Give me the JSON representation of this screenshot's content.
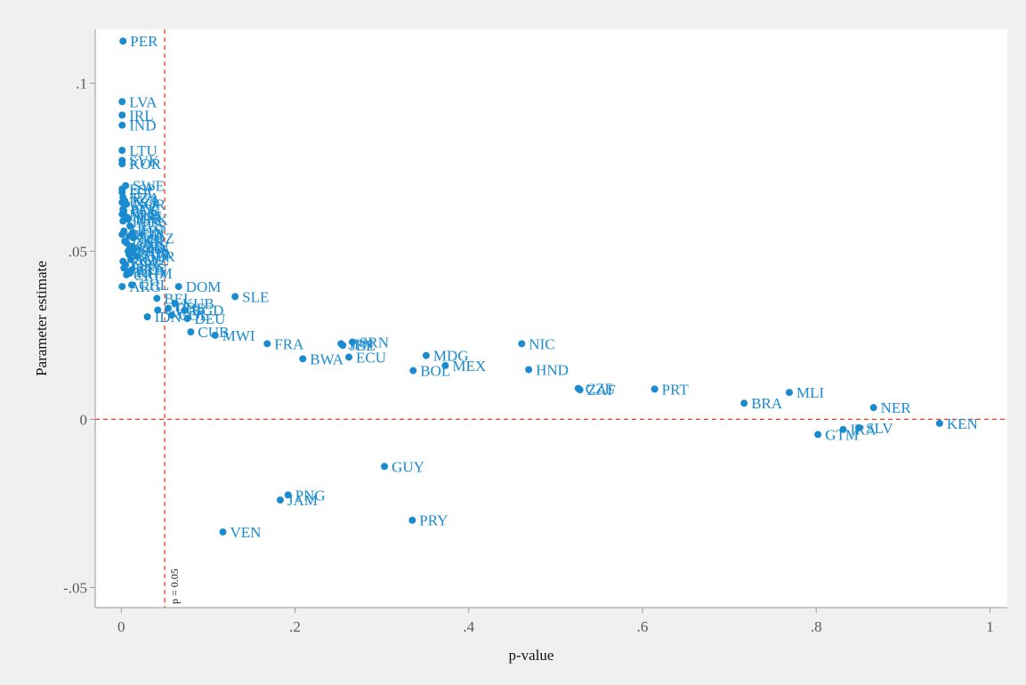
{
  "chart_data": {
    "type": "scatter",
    "xlabel": "p-value",
    "ylabel": "Parameter estimate",
    "xlim": [
      -0.03,
      1.02
    ],
    "ylim": [
      -0.056,
      0.116
    ],
    "xticks": [
      0,
      0.2,
      0.4,
      0.6,
      0.8,
      1
    ],
    "xtick_labels": [
      "0",
      ".2",
      ".4",
      ".6",
      ".8",
      "1"
    ],
    "yticks": [
      -0.05,
      0,
      0.05,
      0.1
    ],
    "ytick_labels": [
      "-.05",
      "0",
      ".05",
      ".1"
    ],
    "grid": false,
    "marker_color": "#1a8bcf",
    "ref_color": "#e8402a",
    "reference_lines": {
      "vertical": {
        "x": 0.05,
        "label": "p = 0.05"
      },
      "horizontal": {
        "y": 0
      }
    },
    "points": [
      {
        "label": "PER",
        "x": 0.002,
        "y": 0.1125
      },
      {
        "label": "LVA",
        "x": 0.001,
        "y": 0.0945
      },
      {
        "label": "IRL",
        "x": 0.001,
        "y": 0.0905
      },
      {
        "label": "IND",
        "x": 0.001,
        "y": 0.0875
      },
      {
        "label": "LTU",
        "x": 0.001,
        "y": 0.08
      },
      {
        "label": "SVK",
        "x": 0.001,
        "y": 0.077
      },
      {
        "label": "KOR",
        "x": 0.001,
        "y": 0.076
      },
      {
        "label": "SWE",
        "x": 0.005,
        "y": 0.0695
      },
      {
        "label": "ESP",
        "x": 0.001,
        "y": 0.0685
      },
      {
        "label": "ITA",
        "x": 0.001,
        "y": 0.0675
      },
      {
        "label": "TZA",
        "x": 0.002,
        "y": 0.066
      },
      {
        "label": "NZL",
        "x": 0.004,
        "y": 0.065
      },
      {
        "label": "USA",
        "x": 0.001,
        "y": 0.0645
      },
      {
        "label": "NOR",
        "x": 0.006,
        "y": 0.064
      },
      {
        "label": "PAK",
        "x": 0.002,
        "y": 0.0625
      },
      {
        "label": "POL",
        "x": 0.003,
        "y": 0.062
      },
      {
        "label": "NLD",
        "x": 0.001,
        "y": 0.061
      },
      {
        "label": "AUS",
        "x": 0.004,
        "y": 0.0605
      },
      {
        "label": "JOR",
        "x": 0.007,
        "y": 0.06
      },
      {
        "label": "DNK",
        "x": 0.008,
        "y": 0.0595
      },
      {
        "label": "TUR",
        "x": 0.002,
        "y": 0.059
      },
      {
        "label": "RUS",
        "x": 0.01,
        "y": 0.0575
      },
      {
        "label": "HUN",
        "x": 0.003,
        "y": 0.056
      },
      {
        "label": "FIN",
        "x": 0.013,
        "y": 0.0555
      },
      {
        "label": "BGR",
        "x": 0.001,
        "y": 0.055
      },
      {
        "label": "CZE",
        "x": 0.009,
        "y": 0.0545
      },
      {
        "label": "MOZ",
        "x": 0.014,
        "y": 0.054
      },
      {
        "label": "UKR",
        "x": 0.004,
        "y": 0.053
      },
      {
        "label": "ZAF",
        "x": 0.006,
        "y": 0.0525
      },
      {
        "label": "URY",
        "x": 0.012,
        "y": 0.0515
      },
      {
        "label": "CHN",
        "x": 0.01,
        "y": 0.051
      },
      {
        "label": "PHL",
        "x": 0.015,
        "y": 0.0505
      },
      {
        "label": "THA",
        "x": 0.008,
        "y": 0.05
      },
      {
        "label": "UGA",
        "x": 0.013,
        "y": 0.0495
      },
      {
        "label": "CAN",
        "x": 0.009,
        "y": 0.049
      },
      {
        "label": "GBR",
        "x": 0.018,
        "y": 0.0485
      },
      {
        "label": "KAZ",
        "x": 0.011,
        "y": 0.0475
      },
      {
        "label": "ROU",
        "x": 0.002,
        "y": 0.047
      },
      {
        "label": "GRC",
        "x": 0.005,
        "y": 0.046
      },
      {
        "label": "EGY",
        "x": 0.003,
        "y": 0.045
      },
      {
        "label": "SEN",
        "x": 0.012,
        "y": 0.0445
      },
      {
        "label": "ETH",
        "x": 0.008,
        "y": 0.044
      },
      {
        "label": "CRI",
        "x": 0.006,
        "y": 0.043
      },
      {
        "label": "KHM",
        "x": 0.01,
        "y": 0.0435
      },
      {
        "label": "ARG",
        "x": 0.001,
        "y": 0.0395
      },
      {
        "label": "CHL",
        "x": 0.012,
        "y": 0.04
      },
      {
        "label": "DOM",
        "x": 0.066,
        "y": 0.0395
      },
      {
        "label": "SLE",
        "x": 0.131,
        "y": 0.0365
      },
      {
        "label": "BEL",
        "x": 0.041,
        "y": 0.036
      },
      {
        "label": "KUB",
        "x": 0.062,
        "y": 0.0345
      },
      {
        "label": "CHE",
        "x": 0.054,
        "y": 0.033
      },
      {
        "label": "BGD",
        "x": 0.073,
        "y": 0.0325
      },
      {
        "label": "GHA",
        "x": 0.042,
        "y": 0.0325
      },
      {
        "label": "IDN",
        "x": 0.03,
        "y": 0.0305
      },
      {
        "label": "COL",
        "x": 0.058,
        "y": 0.031
      },
      {
        "label": "DEU",
        "x": 0.076,
        "y": 0.03
      },
      {
        "label": "CUB",
        "x": 0.08,
        "y": 0.026
      },
      {
        "label": "MWI",
        "x": 0.108,
        "y": 0.025
      },
      {
        "label": "FRA",
        "x": 0.168,
        "y": 0.0225
      },
      {
        "label": "JPN",
        "x": 0.253,
        "y": 0.0225
      },
      {
        "label": "SRN",
        "x": 0.266,
        "y": 0.023
      },
      {
        "label": "JBE",
        "x": 0.255,
        "y": 0.022
      },
      {
        "label": "ECU",
        "x": 0.262,
        "y": 0.0185
      },
      {
        "label": "BWA",
        "x": 0.209,
        "y": 0.018
      },
      {
        "label": "MDG",
        "x": 0.351,
        "y": 0.019
      },
      {
        "label": "MEX",
        "x": 0.373,
        "y": 0.016
      },
      {
        "label": "BOL",
        "x": 0.336,
        "y": 0.0145
      },
      {
        "label": "NIC",
        "x": 0.461,
        "y": 0.0225
      },
      {
        "label": "HND",
        "x": 0.469,
        "y": 0.0148
      },
      {
        "label": "CZE",
        "x": 0.526,
        "y": 0.0092
      },
      {
        "label": "ZAF",
        "x": 0.528,
        "y": 0.0088
      },
      {
        "label": "PRT",
        "x": 0.614,
        "y": 0.009
      },
      {
        "label": "BRA",
        "x": 0.717,
        "y": 0.0048
      },
      {
        "label": "MLI",
        "x": 0.769,
        "y": 0.008
      },
      {
        "label": "NER",
        "x": 0.866,
        "y": 0.0035
      },
      {
        "label": "KEN",
        "x": 0.942,
        "y": -0.0012
      },
      {
        "label": "SLV",
        "x": 0.849,
        "y": -0.0025
      },
      {
        "label": "IRA",
        "x": 0.831,
        "y": -0.003
      },
      {
        "label": "GTM",
        "x": 0.802,
        "y": -0.0045
      },
      {
        "label": "GUY",
        "x": 0.303,
        "y": -0.014
      },
      {
        "label": "PNG",
        "x": 0.192,
        "y": -0.0225
      },
      {
        "label": "JAM",
        "x": 0.183,
        "y": -0.024
      },
      {
        "label": "PRY",
        "x": 0.335,
        "y": -0.03
      },
      {
        "label": "VEN",
        "x": 0.117,
        "y": -0.0335
      }
    ]
  }
}
